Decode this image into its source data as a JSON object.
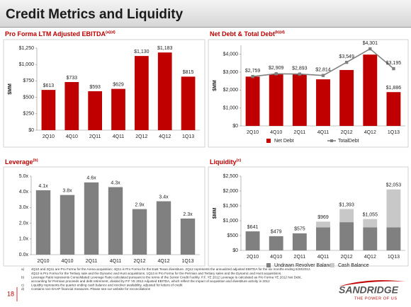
{
  "slide": {
    "title": "Credit Metrics and Liquidity",
    "page_number": "18",
    "logo": {
      "name": "SANDRIDGE",
      "tagline": "THE POWER OF US"
    }
  },
  "chart_data": [
    {
      "type": "bar",
      "title": "Pro Forma LTM Adjusted EBITDA",
      "title_note": "(a)(d)",
      "y_label": "$MM",
      "categories": [
        "2Q10",
        "4Q10",
        "2Q11",
        "4Q11",
        "2Q12",
        "4Q12",
        "1Q13"
      ],
      "series": [
        {
          "name": null,
          "mark": "bar",
          "color": "#C00000",
          "values": [
            613,
            733,
            593,
            629,
            1130,
            1183,
            815
          ],
          "value_labels": [
            "$613",
            "$733",
            "$593",
            "$629",
            "$1,130",
            "$1,183",
            "$815"
          ]
        }
      ],
      "ylim": [
        0,
        1250
      ],
      "yticks": [
        {
          "value": 0,
          "label": "$0"
        },
        {
          "value": 250,
          "label": "$250"
        },
        {
          "value": 500,
          "label": "$500"
        },
        {
          "value": 750,
          "label": "$750"
        },
        {
          "value": 1000,
          "label": "$1,000"
        },
        {
          "value": 1250,
          "label": "$1,250"
        }
      ],
      "grid": false
    },
    {
      "type": "combo",
      "title": "Net Debt & Total Debt",
      "title_note": "(b)(d)",
      "y_label": "$MM",
      "categories": [
        "2Q10",
        "4Q10",
        "2Q11",
        "4Q11",
        "2Q12",
        "4Q12",
        "1Q13"
      ],
      "series": [
        {
          "name": "Net Debt",
          "mark": "bar",
          "color": "#C00000",
          "values": [
            2750,
            2900,
            2880,
            2600,
            3120,
            3980,
            1886
          ],
          "value_labels": [
            null,
            null,
            null,
            null,
            null,
            null,
            "$1,886"
          ]
        },
        {
          "name": "TotalDebt",
          "mark": "line",
          "color": "#808080",
          "values": [
            2759,
            2909,
            2893,
            2814,
            3549,
            4301,
            3195
          ],
          "value_labels": [
            "$2,759",
            "$2,909",
            "$2,893",
            "$2,814",
            "$3,549",
            "$4,301",
            "$3,195"
          ]
        }
      ],
      "ylim": [
        0,
        4500
      ],
      "yticks": [
        {
          "value": 0,
          "label": "$0"
        },
        {
          "value": 1000,
          "label": "$1,000"
        },
        {
          "value": 2000,
          "label": "$2,000"
        },
        {
          "value": 3000,
          "label": "$3,000"
        },
        {
          "value": 4000,
          "label": "$4,000"
        }
      ],
      "grid": false
    },
    {
      "type": "bar",
      "title": "Leverage",
      "title_note": "(b)",
      "categories": [
        "2Q10",
        "4Q10",
        "2Q11",
        "4Q11",
        "2Q12",
        "4Q12",
        "1Q13"
      ],
      "series": [
        {
          "name": null,
          "mark": "bar",
          "color": "#808080",
          "values": [
            4.1,
            3.8,
            4.6,
            4.3,
            2.9,
            3.4,
            2.3
          ],
          "value_labels": [
            "4.1x",
            "3.8x",
            "4.6x",
            "4.3x",
            "2.9x",
            "3.4x",
            "2.3x"
          ]
        }
      ],
      "ylim": [
        0,
        5
      ],
      "yticks": [
        {
          "value": 0,
          "label": "0.0x"
        },
        {
          "value": 1,
          "label": "1.0x"
        },
        {
          "value": 2,
          "label": "2.0x"
        },
        {
          "value": 3,
          "label": "3.0x"
        },
        {
          "value": 4,
          "label": "4.0x"
        },
        {
          "value": 5,
          "label": "5.0x"
        }
      ],
      "grid": false
    },
    {
      "type": "stacked",
      "title": "Liquidity",
      "title_note": "(c)",
      "y_label": "$MM",
      "categories": [
        "2Q10",
        "4Q10",
        "2Q11",
        "4Q11",
        "2Q12",
        "4Q12",
        "1Q13"
      ],
      "series": [
        {
          "name": "Undrawn Revolver Balance",
          "mark": "bar",
          "color": "#808080",
          "values": [
            641,
            479,
            575,
            775,
            950,
            775,
            775
          ]
        },
        {
          "name": "Cash Balance",
          "mark": "bar",
          "color": "#C8C8C8",
          "values": [
            0,
            0,
            0,
            194,
            443,
            280,
            1278
          ]
        }
      ],
      "totals": {
        "values": [
          641,
          479,
          575,
          969,
          1393,
          1055,
          2053
        ],
        "value_labels": [
          "$641",
          "$479",
          "$575",
          "$969",
          "$1,393",
          "$1,055",
          "$2,053"
        ]
      },
      "ylim": [
        0,
        2500
      ],
      "yticks": [
        {
          "value": 0,
          "label": "$0"
        },
        {
          "value": 500,
          "label": "$500"
        },
        {
          "value": 1000,
          "label": "$1,000"
        },
        {
          "value": 1500,
          "label": "$1,500"
        },
        {
          "value": 2000,
          "label": "$2,000"
        },
        {
          "value": 2500,
          "label": "$2,500"
        }
      ],
      "grid": false
    }
  ],
  "footnotes": [
    {
      "marker": "a)",
      "lines": [
        "4Q10 and 2Q11 are Pro Forma for the Arena acquisition; 4Q11 is Pro Forma for the East Texas divestiture. 2Q12 represents the annualized adjusted EBITDA for the six months ending 6/30/2012.",
        "4Q12 is Pro Forma for the Tertiary sale and the Dynamic and Hunt acquisitions. 1Q13 is Pro Forma for the Permian and Tertiary sales and the Dynamic and Hunt acquisitions."
      ]
    },
    {
      "marker": "b)",
      "lines": [
        "Leverage Ratio represents Consolidated Leverage Ratio calculated pursuant to the terms of the Senior Credit Facility. P.F. YE 2012 Leverage is calculated as Pro Forma YE 2012 Net Debt,",
        "accounting for Permian proceeds and debt retirement, divided by P.F YE 2012 Adjusted EBITDA, which reflect the impact of acquisition and divestiture activity in 2012"
      ]
    },
    {
      "marker": "c)",
      "lines": [
        "Liquidity represents the quarter ending cash balance and revolver availability, adjusted for letters of credit"
      ]
    },
    {
      "marker": "d)",
      "lines": [
        "Contains non-GAAP financial measures. Please see our website for reconciliations"
      ]
    }
  ]
}
